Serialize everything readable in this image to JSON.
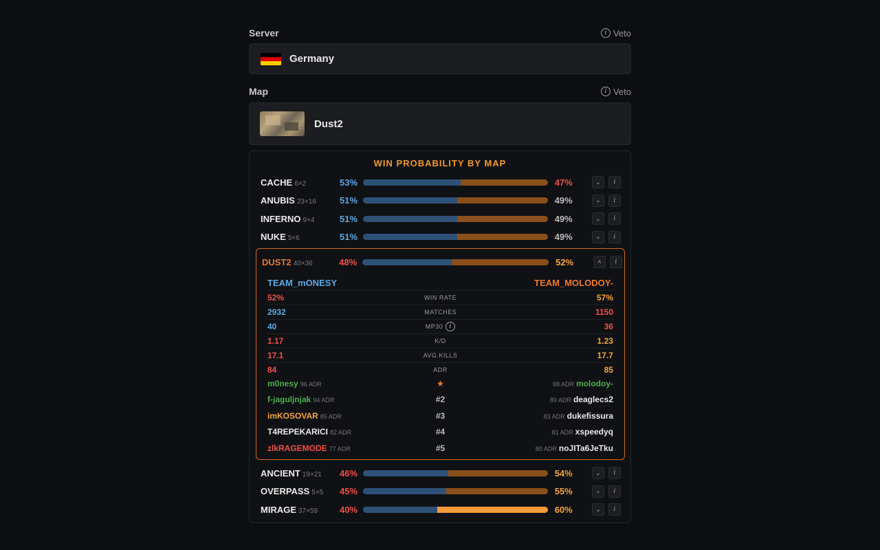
{
  "server": {
    "label": "Server",
    "veto": "Veto",
    "value": "Germany"
  },
  "map": {
    "label": "Map",
    "veto": "Veto",
    "value": "Dust2"
  },
  "panel": {
    "title": "WIN PROBABILITY BY MAP",
    "maps_top": [
      {
        "name": "CACHE",
        "record": "6×2",
        "left_pct": "53%",
        "right_pct": "47%",
        "left_value": 53,
        "left_color": "blue",
        "right_color": "red"
      },
      {
        "name": "ANUBIS",
        "record": "23×16",
        "left_pct": "51%",
        "right_pct": "49%",
        "left_value": 51,
        "left_color": "blue",
        "right_color": "grey"
      },
      {
        "name": "INFERNO",
        "record": "9×4",
        "left_pct": "51%",
        "right_pct": "49%",
        "left_value": 51,
        "left_color": "blue",
        "right_color": "grey"
      },
      {
        "name": "NUKE",
        "record": "5×6",
        "left_pct": "51%",
        "right_pct": "49%",
        "left_value": 51,
        "left_color": "blue",
        "right_color": "grey"
      }
    ],
    "expanded": {
      "name": "DUST2",
      "record": "40×36",
      "left_pct": "48%",
      "right_pct": "52%",
      "left_value": 48,
      "team_left": "TEAM_mONESY",
      "team_right": "TEAM_MOLODOY-",
      "stats": [
        {
          "label": "WIN RATE",
          "left": "52%",
          "right": "57%",
          "left_color": "red",
          "right_color": "orange"
        },
        {
          "label": "MATCHES",
          "left": "2932",
          "right": "1150",
          "left_color": "blue",
          "right_color": "red"
        },
        {
          "label": "MP30",
          "left": "40",
          "right": "36",
          "left_color": "blue",
          "right_color": "red",
          "info": true
        },
        {
          "label": "K/D",
          "left": "1.17",
          "right": "1.23",
          "left_color": "red",
          "right_color": "orange"
        },
        {
          "label": "AVG.KILLS",
          "left": "17.1",
          "right": "17.7",
          "left_color": "red",
          "right_color": "orange"
        },
        {
          "label": "ADR",
          "left": "84",
          "right": "85",
          "left_color": "red",
          "right_color": "orange"
        }
      ],
      "players": [
        {
          "rank": "★",
          "left_name": "m0nesy",
          "left_adr": "96 ADR",
          "left_color": "green",
          "right_name": "molodoy-",
          "right_adr": "98 ADR",
          "right_color": "green"
        },
        {
          "rank": "#2",
          "left_name": "f-jaguljnjak",
          "left_adr": "94 ADR",
          "left_color": "green",
          "right_name": "deaglecs2",
          "right_adr": "89 ADR",
          "right_color": "white"
        },
        {
          "rank": "#3",
          "left_name": "imKOSOVAR",
          "left_adr": "85 ADR",
          "left_color": "orange",
          "right_name": "dukefissura",
          "right_adr": "83 ADR",
          "right_color": "white"
        },
        {
          "rank": "#4",
          "left_name": "T4REPEKARICI",
          "left_adr": "82 ADR",
          "left_color": "white",
          "right_name": "xspeedyq",
          "right_adr": "81 ADR",
          "right_color": "white"
        },
        {
          "rank": "#5",
          "left_name": "zlkRAGEMODE",
          "left_adr": "77 ADR",
          "left_color": "red",
          "right_name": "noJITa6JeTku",
          "right_adr": "80 ADR",
          "right_color": "white"
        }
      ]
    },
    "maps_bottom": [
      {
        "name": "ANCIENT",
        "record": "19×21",
        "left_pct": "46%",
        "right_pct": "54%",
        "left_value": 46,
        "left_color": "red",
        "right_color": "orange"
      },
      {
        "name": "OVERPASS",
        "record": "5×5",
        "left_pct": "45%",
        "right_pct": "55%",
        "left_value": 45,
        "left_color": "red",
        "right_color": "orange"
      },
      {
        "name": "MIRAGE",
        "record": "37×59",
        "left_pct": "40%",
        "right_pct": "60%",
        "left_value": 40,
        "left_color": "red",
        "right_color": "orange"
      }
    ],
    "buttons": {
      "expand": "⌄",
      "collapse": "˄",
      "info": "i"
    }
  },
  "colors": {
    "blue": "#5aa9e6",
    "red": "#f0504a",
    "orange": "#f5a63c",
    "grey": "#bdbdbd",
    "green": "#4caf50",
    "white": "#e9e9e9",
    "bar_left": "#2e5178",
    "bar_right": "#8a4f1a",
    "bar_right_bright": "#f59a3a",
    "accent": "#f29a2e",
    "flag": [
      "#000000",
      "#dd0000",
      "#ffce00"
    ]
  },
  "icons": {
    "info": "info-icon",
    "flag": "germany-flag-icon",
    "thumb": "map-thumbnail"
  }
}
